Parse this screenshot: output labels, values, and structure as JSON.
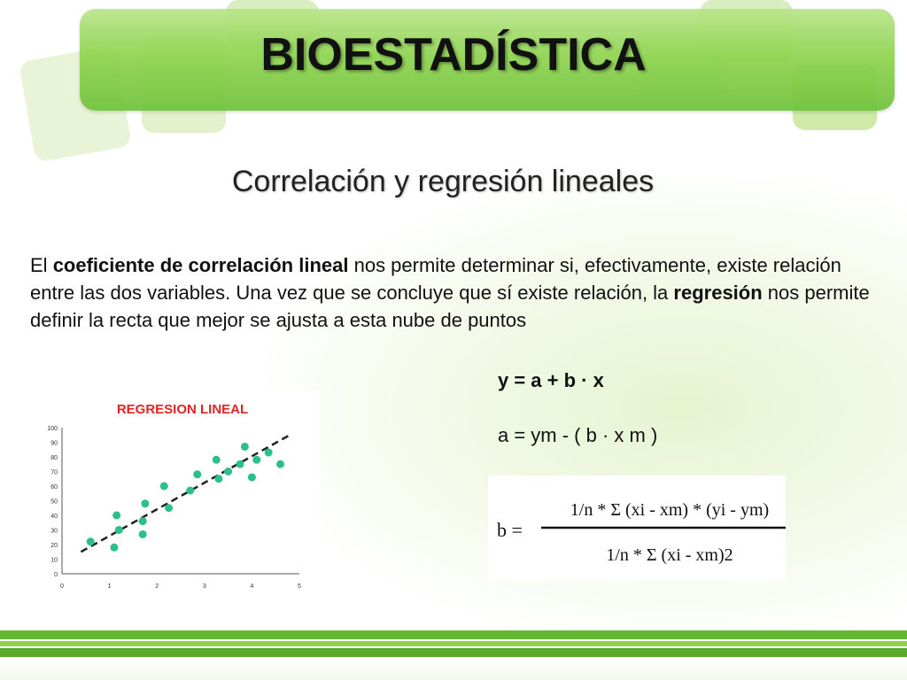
{
  "header": {
    "title": "BIOESTADÍSTICA"
  },
  "slide": {
    "subtitle": "Correlación y regresión lineales",
    "paragraph": {
      "part1": "El ",
      "bold1": "coeficiente de correlación lineal",
      "part2": " nos permite determinar si, efectivamente, existe relación entre las dos variables. Una vez que se concluye que sí existe relación, la ",
      "bold2": "regresión",
      "part3": " nos permite definir la recta que mejor se ajusta a esta nube de puntos"
    },
    "formula_main": "y = a + b · x",
    "formula_a": "a = ym - ( b · x m )",
    "formula_b": {
      "lhs": "b =",
      "numerator": "1/n * Σ (xi - xm) * (yi - ym)",
      "denominator": "1/n * Σ (xi - xm)2"
    }
  },
  "chart_data": {
    "type": "scatter",
    "title": "REGRESION LINEAL",
    "xlim": [
      0,
      5
    ],
    "ylim": [
      0,
      100
    ],
    "x_ticks": [
      "0",
      "1",
      "2",
      "3",
      "4",
      "5"
    ],
    "y_ticks": [
      "0",
      "10",
      "20",
      "30",
      "40",
      "50",
      "60",
      "70",
      "80",
      "90",
      "100"
    ],
    "points": [
      {
        "x": 0.6,
        "y": 22
      },
      {
        "x": 1.1,
        "y": 18
      },
      {
        "x": 1.15,
        "y": 40
      },
      {
        "x": 1.2,
        "y": 30
      },
      {
        "x": 1.7,
        "y": 36
      },
      {
        "x": 1.7,
        "y": 27
      },
      {
        "x": 1.75,
        "y": 48
      },
      {
        "x": 2.15,
        "y": 60
      },
      {
        "x": 2.25,
        "y": 45
      },
      {
        "x": 2.7,
        "y": 57
      },
      {
        "x": 2.85,
        "y": 68
      },
      {
        "x": 3.25,
        "y": 78
      },
      {
        "x": 3.3,
        "y": 65
      },
      {
        "x": 3.5,
        "y": 70
      },
      {
        "x": 3.75,
        "y": 75
      },
      {
        "x": 3.85,
        "y": 87
      },
      {
        "x": 4.0,
        "y": 66
      },
      {
        "x": 4.1,
        "y": 78
      },
      {
        "x": 4.35,
        "y": 83
      },
      {
        "x": 4.6,
        "y": 75
      }
    ],
    "trend_line": {
      "x": [
        0.4,
        4.8
      ],
      "y": [
        15,
        95
      ]
    },
    "colors": {
      "points": "#2bbf8a",
      "line": "#222222",
      "title": "#e32424"
    }
  }
}
